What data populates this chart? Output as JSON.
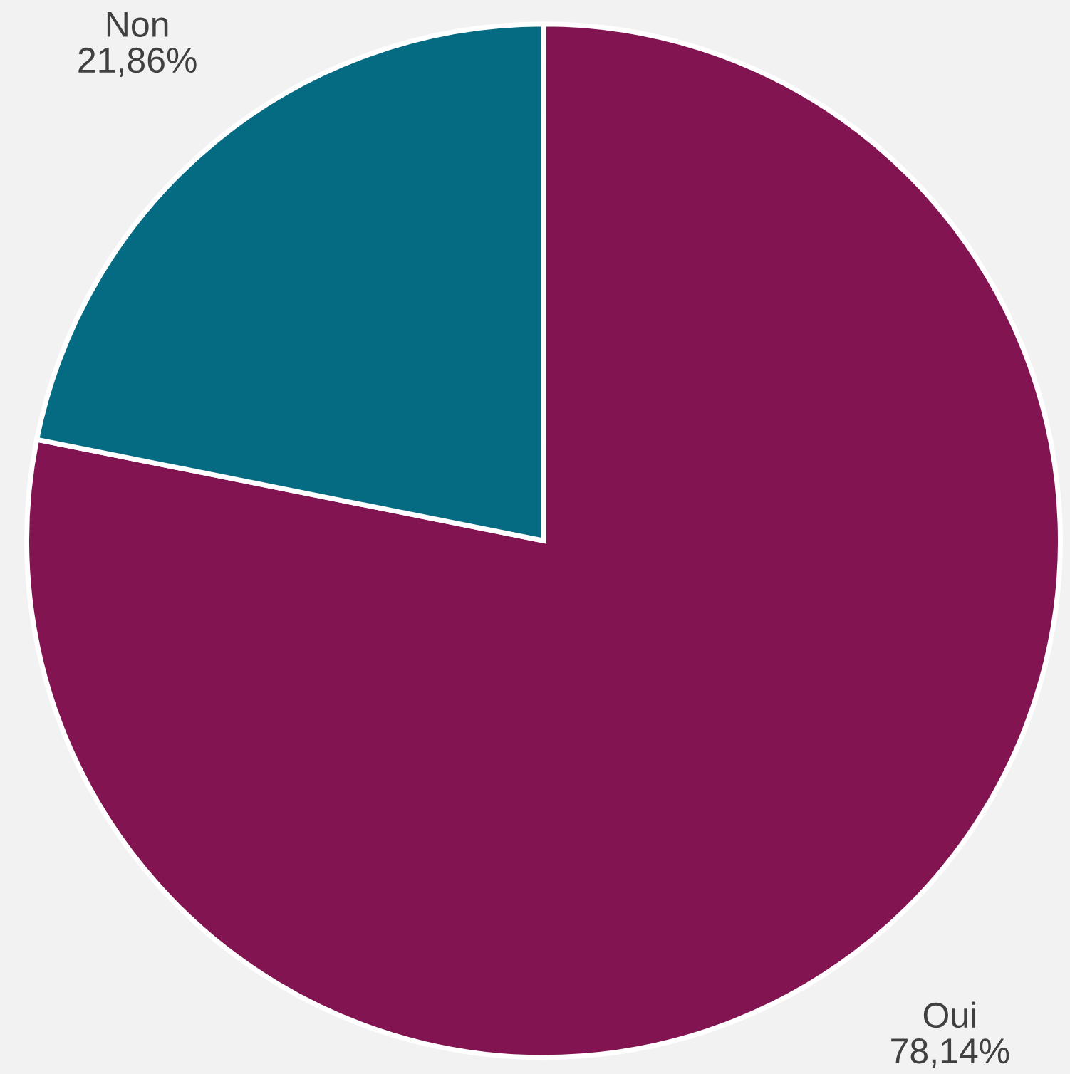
{
  "chart_data": {
    "type": "pie",
    "categories": [
      "Oui",
      "Non"
    ],
    "values": [
      78.14,
      21.86
    ],
    "value_labels": [
      "78,14%",
      "21,86%"
    ],
    "colors": [
      "#821452",
      "#046b82"
    ]
  }
}
